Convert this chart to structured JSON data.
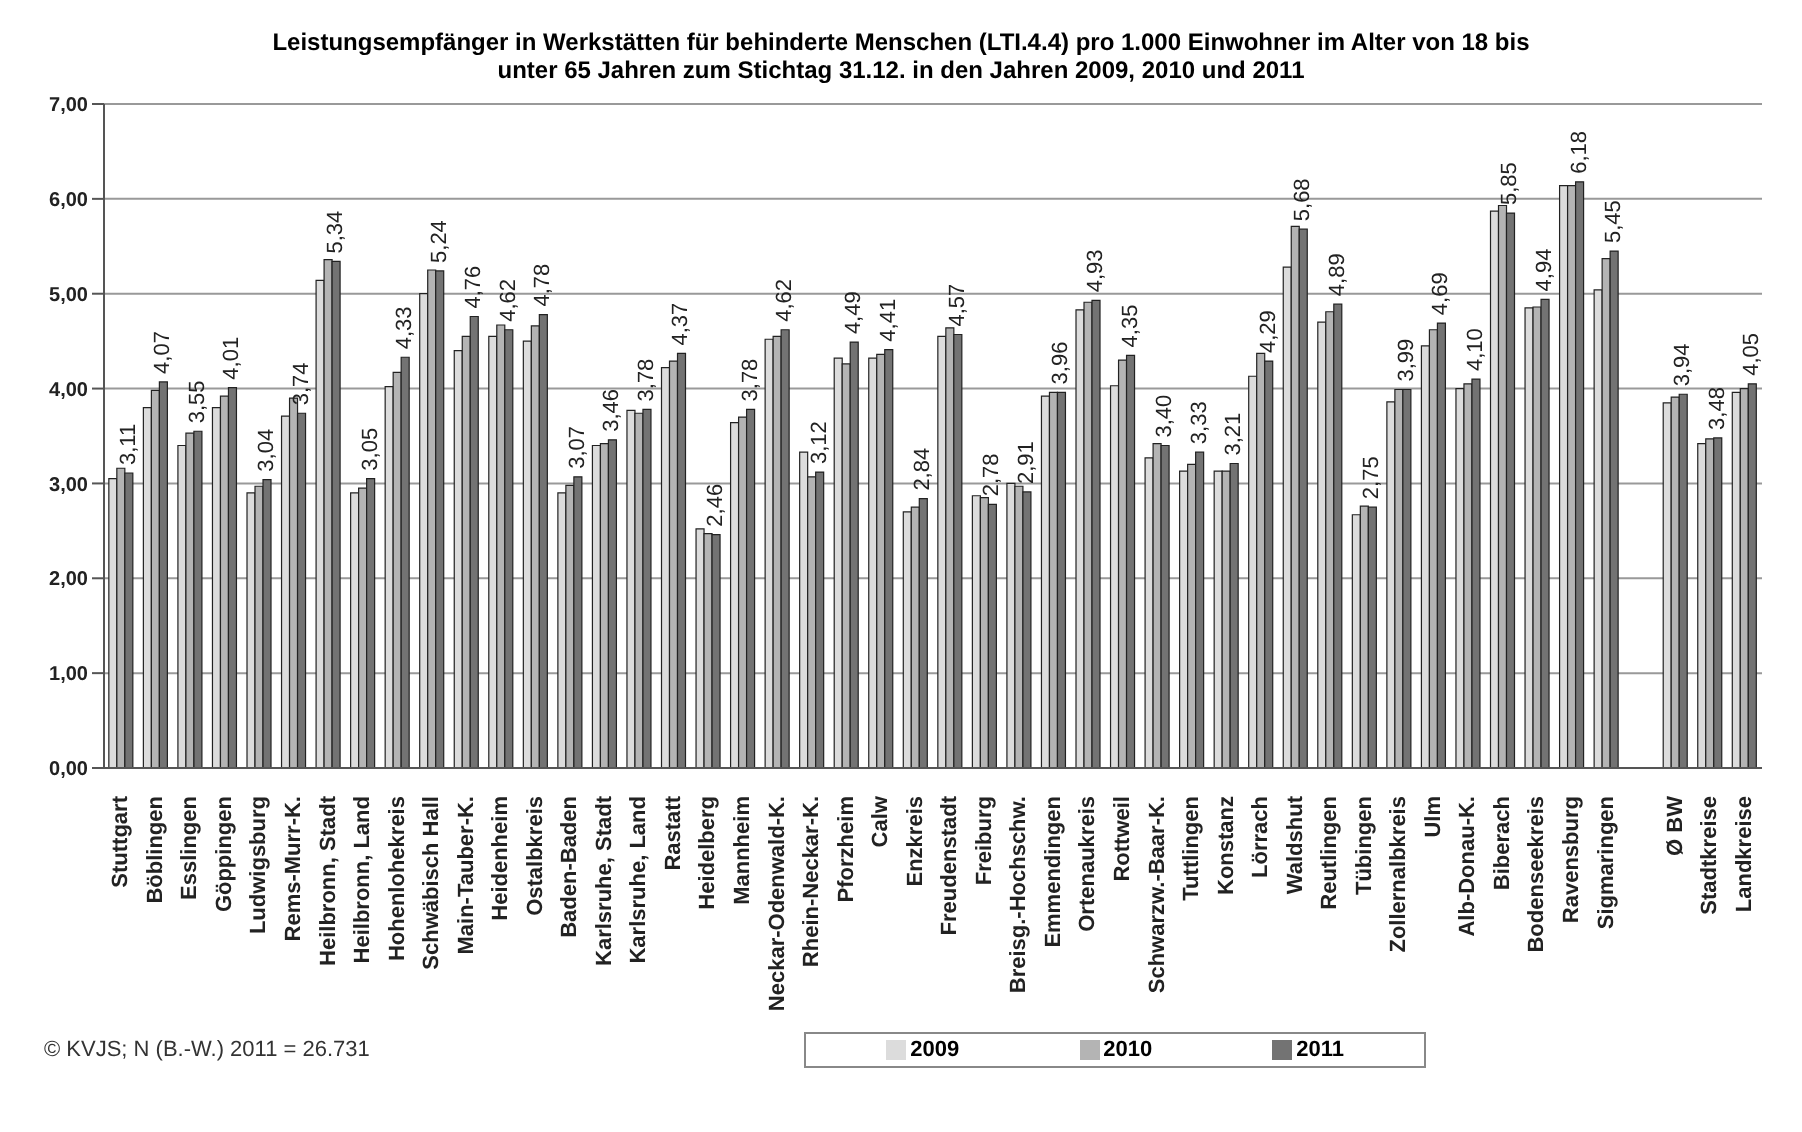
{
  "chart_data": {
    "type": "bar",
    "title": "Leistungsempfänger in Werkstätten für behinderte Menschen  (LTI.4.4) pro 1.000 Einwohner im Alter von 18 bis unter 65 Jahren zum Stichtag 31.12. in den Jahren 2009, 2010 und 2011",
    "categories": [
      "Stuttgart",
      "Böblingen",
      "Esslingen",
      "Göppingen",
      "Ludwigsburg",
      "Rems-Murr-K.",
      "Heilbronn, Stadt",
      "Heilbronn, Land",
      "Hohenlohekreis",
      "Schwäbisch Hall",
      "Main-Tauber-K.",
      "Heidenheim",
      "Ostalbkreis",
      "Baden-Baden",
      "Karlsruhe, Stadt",
      "Karlsruhe, Land",
      "Rastatt",
      "Heidelberg",
      "Mannheim",
      "Neckar-Odenwald-K.",
      "Rhein-Neckar-K.",
      "Pforzheim",
      "Calw",
      "Enzkreis",
      "Freudenstadt",
      "Freiburg",
      "Breisg.-Hochschw.",
      "Emmendingen",
      "Ortenaukreis",
      "Rottweil",
      "Schwarzw.-Baar-K.",
      "Tuttlingen",
      "Konstanz",
      "Lörrach",
      "Waldshut",
      "Reutlingen",
      "Tübingen",
      "Zollernalbkreis",
      "Ulm",
      "Alb-Donau-K.",
      "Biberach",
      "Bodenseekreis",
      "Ravensburg",
      "Sigmaringen",
      null,
      "Ø BW",
      "Stadtkreise",
      "Landkreise"
    ],
    "series": [
      {
        "name": "2009",
        "color": "#dcdcdc",
        "values": [
          3.05,
          3.8,
          3.4,
          3.8,
          2.9,
          3.71,
          5.14,
          2.9,
          4.02,
          5.0,
          4.4,
          4.55,
          4.5,
          2.9,
          3.4,
          3.77,
          4.22,
          2.52,
          3.64,
          4.52,
          3.33,
          4.32,
          4.32,
          2.7,
          4.55,
          2.87,
          3.0,
          3.92,
          4.83,
          4.03,
          3.27,
          3.13,
          3.13,
          4.13,
          5.28,
          4.7,
          2.67,
          3.86,
          4.45,
          4.0,
          5.87,
          4.85,
          6.14,
          5.04,
          null,
          3.85,
          3.42,
          3.96
        ]
      },
      {
        "name": "2010",
        "color": "#b4b4b4",
        "values": [
          3.16,
          3.98,
          3.53,
          3.92,
          2.97,
          3.9,
          5.36,
          2.95,
          4.17,
          5.25,
          4.55,
          4.67,
          4.66,
          2.98,
          3.42,
          3.74,
          4.29,
          2.47,
          3.7,
          4.55,
          3.07,
          4.26,
          4.36,
          2.75,
          4.64,
          2.85,
          2.97,
          3.96,
          4.91,
          4.3,
          3.42,
          3.2,
          3.13,
          4.37,
          5.71,
          4.81,
          2.76,
          3.99,
          4.62,
          4.05,
          5.93,
          4.86,
          6.14,
          5.37,
          null,
          3.91,
          3.47,
          4.0
        ]
      },
      {
        "name": "2011",
        "color": "#737373",
        "values": [
          3.11,
          4.07,
          3.55,
          4.01,
          3.04,
          3.74,
          5.34,
          3.05,
          4.33,
          5.24,
          4.76,
          4.62,
          4.78,
          3.07,
          3.46,
          3.78,
          4.37,
          2.46,
          3.78,
          4.62,
          3.12,
          4.49,
          4.41,
          2.84,
          4.57,
          2.78,
          2.91,
          3.96,
          4.93,
          4.35,
          3.4,
          3.33,
          3.21,
          4.29,
          5.68,
          4.89,
          2.75,
          3.99,
          4.69,
          4.1,
          5.85,
          4.94,
          6.18,
          5.45,
          null,
          3.94,
          3.48,
          4.05
        ],
        "value_labels": [
          "3,11",
          "4,07",
          "3,55",
          "4,01",
          "3,04",
          "3,74",
          "5,34",
          "3,05",
          "4,33",
          "5,24",
          "4,76",
          "4,62",
          "4,78",
          "3,07",
          "3,46",
          "3,78",
          "4,37",
          "2,46",
          "3,78",
          "4,62",
          "3,12",
          "4,49",
          "4,41",
          "2,84",
          "4,57",
          "2,78",
          "2,91",
          "3,96",
          "4,93",
          "4,35",
          "3,40",
          "3,33",
          "3,21",
          "4,29",
          "5,68",
          "4,89",
          "2,75",
          "3,99",
          "4,69",
          "4,10",
          "5,85",
          "4,94",
          "6,18",
          "5,45",
          null,
          "3,94",
          "3,48",
          "4,05"
        ]
      }
    ],
    "ylim": [
      0,
      7
    ],
    "yticks": [
      {
        "value": 0,
        "label": "0,00"
      },
      {
        "value": 1,
        "label": "1,00"
      },
      {
        "value": 2,
        "label": "2,00"
      },
      {
        "value": 3,
        "label": "3,00"
      },
      {
        "value": 4,
        "label": "4,00"
      },
      {
        "value": 5,
        "label": "5,00"
      },
      {
        "value": 6,
        "label": "6,00"
      },
      {
        "value": 7,
        "label": "7,00"
      }
    ],
    "grid": "y",
    "legend": "bottom",
    "annotations": [
      "© KVJS; N (B.-W.) 2011 = 26.731"
    ]
  }
}
